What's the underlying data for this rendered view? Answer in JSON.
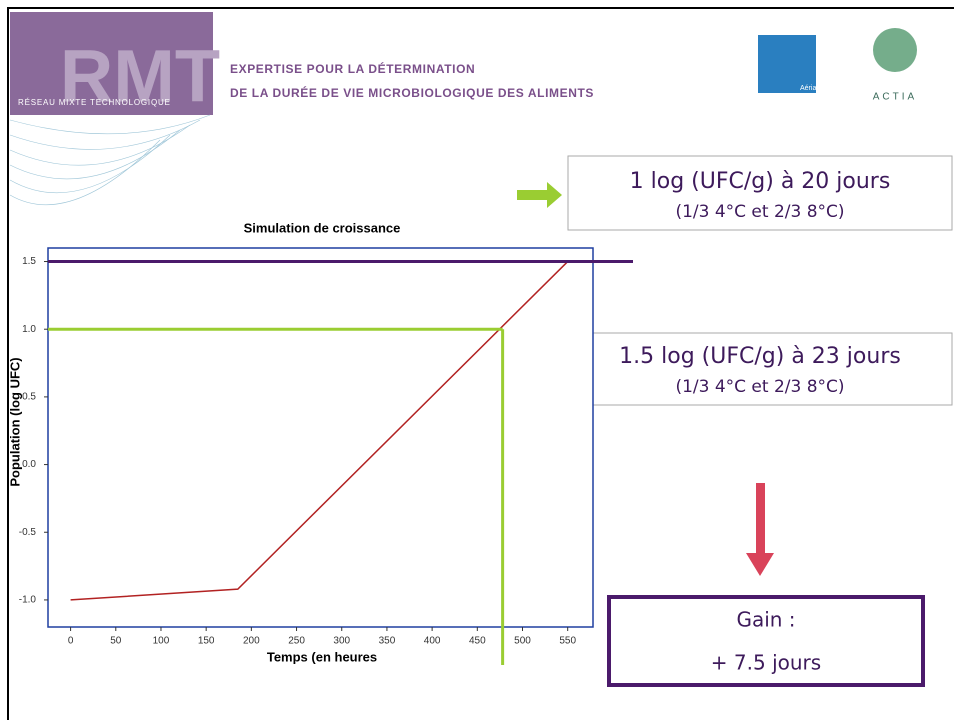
{
  "header": {
    "logo": "RMT",
    "network": "RÉSEAU MIXTE TECHNOLOGIQUE",
    "line1": "EXPERTISE POUR LA DÉTERMINATION",
    "line2": "DE LA DURÉE DE VIE  MICROBIOLOGIQUE DES ALIMENTS",
    "partner1": "Aérial",
    "partner2": "ACTIA"
  },
  "callouts": [
    {
      "title": "1 log (UFC/g) à 20 jours",
      "note": "(1/3 4°C et 2/3 8°C)"
    },
    {
      "title": "1.5 log (UFC/g) à 23 jours",
      "note": "(1/3 4°C et 2/3 8°C)"
    }
  ],
  "gain": {
    "label": "Gain  :",
    "value": "+ 7.5 jours"
  },
  "chart_data": {
    "type": "line",
    "title": "Simulation de croissance",
    "x_label": "Temps (en heures",
    "y_label": "Population (log UFC)",
    "x": [
      0,
      185,
      550
    ],
    "values": [
      -1.0,
      -0.92,
      1.5
    ],
    "color": "#b22222",
    "xlim": [
      -25,
      578
    ],
    "ylim": [
      -1.2,
      1.6
    ],
    "xticks": [
      0,
      50,
      100,
      150,
      200,
      250,
      300,
      350,
      400,
      450,
      500,
      550
    ],
    "yticks": [
      {
        "value": -1,
        "label": "-1.0"
      },
      -0.5,
      {
        "value": 0,
        "label": "0.0"
      },
      0.5,
      {
        "value": 1,
        "label": "1.0"
      },
      1.5
    ],
    "reference_lines": [
      {
        "y": 1.5,
        "color": "#4b1a6b"
      },
      {
        "y": 1.0,
        "x": 478,
        "color": "#9acd32"
      }
    ]
  }
}
